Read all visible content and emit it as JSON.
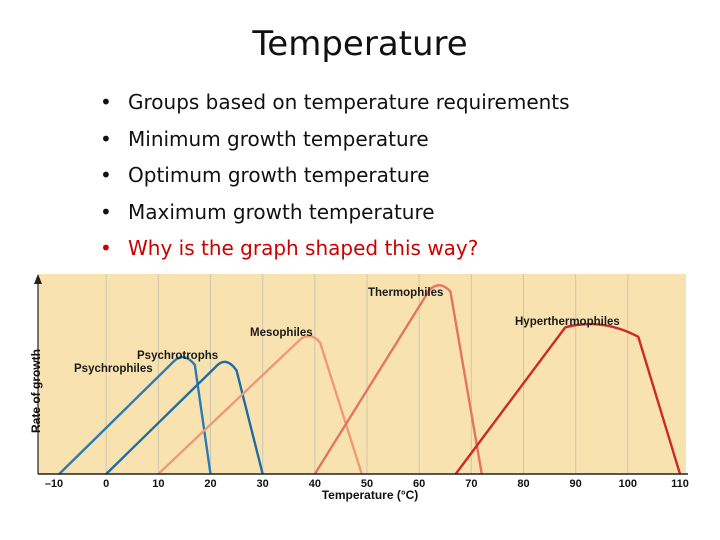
{
  "slide": {
    "title": "Temperature",
    "bullet_glyph": "•",
    "bullets": [
      "Groups based on temperature requirements",
      "Minimum growth temperature",
      "Optimum growth temperature",
      "Maximum growth temperature",
      "Why is the graph shaped this way?"
    ]
  },
  "chart_data": {
    "type": "line",
    "title": "",
    "xlabel": "Temperature (°C)",
    "ylabel": "Rate of growth",
    "xlim": [
      -10,
      110
    ],
    "ylim": [
      0,
      1
    ],
    "x_ticks": [
      -10,
      0,
      10,
      20,
      30,
      40,
      50,
      60,
      70,
      80,
      90,
      100,
      110
    ],
    "grid": true,
    "background": "#f8e3b0",
    "series": [
      {
        "name": "Psychrophiles",
        "color": "#2a7ab8",
        "points": [
          [
            -9,
            0
          ],
          [
            13,
            0.6
          ],
          [
            15,
            0.62
          ],
          [
            17,
            0.58
          ],
          [
            20,
            0
          ]
        ]
      },
      {
        "name": "Psychrotrophs",
        "color": "#1f6ca3",
        "points": [
          [
            0,
            0
          ],
          [
            21,
            0.57
          ],
          [
            23,
            0.6
          ],
          [
            25,
            0.55
          ],
          [
            30,
            0
          ]
        ]
      },
      {
        "name": "Mesophiles",
        "color": "#ee9a77",
        "points": [
          [
            10,
            0
          ],
          [
            37,
            0.71
          ],
          [
            39,
            0.73
          ],
          [
            41,
            0.7
          ],
          [
            49,
            0
          ]
        ]
      },
      {
        "name": "Thermophiles",
        "color": "#e27462",
        "points": [
          [
            40,
            0
          ],
          [
            62,
            0.98
          ],
          [
            64,
            1.0
          ],
          [
            66,
            0.97
          ],
          [
            72,
            0
          ]
        ]
      },
      {
        "name": "Hyperthermophiles",
        "color": "#cc2a26",
        "points": [
          [
            67,
            0
          ],
          [
            88,
            0.78
          ],
          [
            95,
            0.8
          ],
          [
            102,
            0.73
          ],
          [
            110,
            0
          ]
        ]
      }
    ]
  }
}
